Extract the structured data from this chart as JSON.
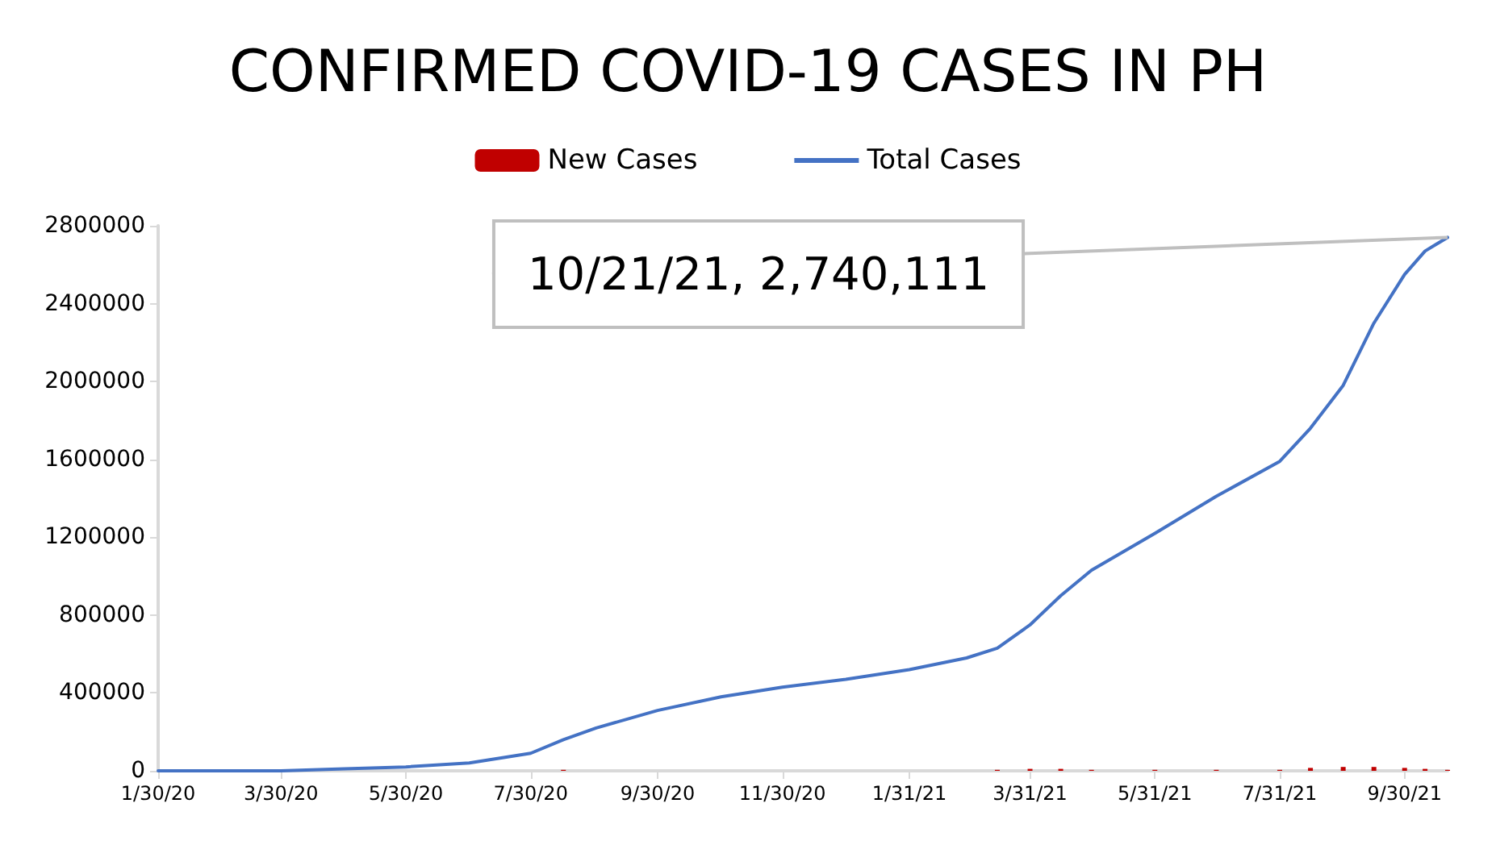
{
  "chart_data": {
    "type": "line",
    "title": "CONFIRMED COVID-19 CASES IN PH",
    "legend": "top",
    "grid": false,
    "marker": "none",
    "line_style": "solid",
    "xlim": [
      "2020-01-30",
      "2021-10-21"
    ],
    "xticks": [
      {
        "value": "2020-01-30",
        "label": "1/30/20"
      },
      {
        "value": "2020-03-30",
        "label": "3/30/20"
      },
      {
        "value": "2020-05-30",
        "label": "5/30/20"
      },
      {
        "value": "2020-07-30",
        "label": "7/30/20"
      },
      {
        "value": "2020-09-30",
        "label": "9/30/20"
      },
      {
        "value": "2020-11-30",
        "label": "11/30/20"
      },
      {
        "value": "2021-01-31",
        "label": "1/31/21"
      },
      {
        "value": "2021-03-31",
        "label": "3/31/21"
      },
      {
        "value": "2021-05-31",
        "label": "5/31/21"
      },
      {
        "value": "2021-07-31",
        "label": "7/31/21"
      },
      {
        "value": "2021-09-30",
        "label": "9/30/21"
      }
    ],
    "ylim": [
      0,
      2800000
    ],
    "yticks": [
      0,
      400000,
      800000,
      1200000,
      1600000,
      2000000,
      2400000,
      2800000
    ],
    "annotations": [
      {
        "text": "10/21/21, 2,740,111",
        "x": "2021-10-21",
        "y": 2740111
      }
    ],
    "series": [
      {
        "name": "New Cases",
        "type": "bar",
        "color": "#c00000",
        "x": [
          "2020-03-30",
          "2020-04-30",
          "2020-05-30",
          "2020-06-30",
          "2020-07-30",
          "2020-08-15",
          "2020-08-31",
          "2020-09-30",
          "2020-10-31",
          "2020-11-30",
          "2020-12-31",
          "2021-01-31",
          "2021-02-28",
          "2021-03-15",
          "2021-03-31",
          "2021-04-15",
          "2021-04-30",
          "2021-05-31",
          "2021-06-30",
          "2021-07-31",
          "2021-08-15",
          "2021-08-31",
          "2021-09-15",
          "2021-09-30",
          "2021-10-10",
          "2021-10-21"
        ],
        "values": [
          0,
          0,
          0,
          0,
          0,
          5000,
          0,
          0,
          0,
          0,
          0,
          0,
          0,
          5000,
          10000,
          10000,
          5000,
          5000,
          5000,
          5000,
          15000,
          20000,
          20000,
          15000,
          10000,
          5000
        ]
      },
      {
        "name": "Total Cases",
        "color": "#4472c4",
        "x": [
          "2020-01-30",
          "2020-03-30",
          "2020-04-30",
          "2020-05-30",
          "2020-06-30",
          "2020-07-30",
          "2020-08-15",
          "2020-08-31",
          "2020-09-30",
          "2020-10-31",
          "2020-11-30",
          "2020-12-31",
          "2021-01-31",
          "2021-02-28",
          "2021-03-15",
          "2021-03-31",
          "2021-04-15",
          "2021-04-30",
          "2021-05-31",
          "2021-06-30",
          "2021-07-31",
          "2021-08-15",
          "2021-08-31",
          "2021-09-15",
          "2021-09-30",
          "2021-10-10",
          "2021-10-21"
        ],
        "values": [
          0,
          0,
          10000,
          20000,
          40000,
          90000,
          160000,
          220000,
          310000,
          380000,
          430000,
          470000,
          520000,
          580000,
          630000,
          750000,
          900000,
          1030000,
          1220000,
          1410000,
          1590000,
          1760000,
          1980000,
          2300000,
          2550000,
          2670000,
          2740111
        ]
      }
    ]
  }
}
